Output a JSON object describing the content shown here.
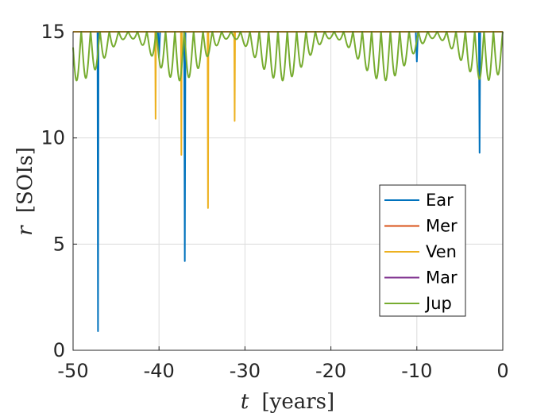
{
  "chart_data": {
    "type": "line",
    "xlabel_var": "t",
    "xlabel_unit": "[years]",
    "ylabel_var": "r",
    "ylabel_unit": "[SOIs]",
    "xlim": [
      -50,
      0
    ],
    "ylim": [
      0,
      15
    ],
    "grid": true,
    "legend_position": "right",
    "xticks": [
      -50,
      -40,
      -30,
      -20,
      -10,
      0
    ],
    "xtick_labels": [
      "-50",
      "-40",
      "-30",
      "-20",
      "-10",
      "0"
    ],
    "yticks": [
      0,
      5,
      10,
      15
    ],
    "ytick_labels": [
      "0",
      "5",
      "10",
      "15"
    ],
    "series": [
      {
        "name": "Ear",
        "color": "#0072BD",
        "dips": [
          {
            "t": -47.1,
            "min": 0.9,
            "width": 0.12
          },
          {
            "t": -40.0,
            "min": 13.8,
            "width": 0.25
          },
          {
            "t": -37.0,
            "min": 4.2,
            "width": 0.15
          },
          {
            "t": -10.0,
            "min": 13.6,
            "width": 0.25
          },
          {
            "t": -2.7,
            "min": 9.3,
            "width": 0.15
          }
        ]
      },
      {
        "name": "Mer",
        "color": "#D95319",
        "dips": []
      },
      {
        "name": "Ven",
        "color": "#EDB120",
        "dips": [
          {
            "t": -40.4,
            "min": 10.9,
            "width": 0.1
          },
          {
            "t": -37.4,
            "min": 9.2,
            "width": 0.1
          },
          {
            "t": -34.3,
            "min": 6.7,
            "width": 0.1
          },
          {
            "t": -31.2,
            "min": 10.8,
            "width": 0.1
          }
        ]
      },
      {
        "name": "Mar",
        "color": "#7E2F8E",
        "dips": []
      },
      {
        "name": "Jup",
        "color": "#77AC30",
        "oscillation": {
          "period_years": 1.09,
          "base": 15,
          "min_depth": 0.3,
          "max_depth": 2.3,
          "beat_period_years": 11.86,
          "beat_phase_t": -2.0
        }
      }
    ]
  }
}
